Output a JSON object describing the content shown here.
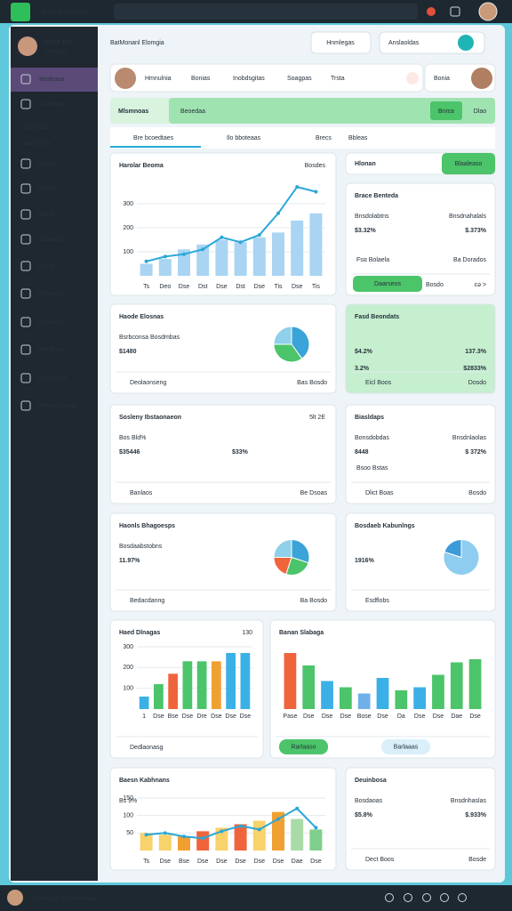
{
  "top_bar": {
    "app_name": "Sεnolab Bnsεmaι",
    "search": "Oεnsol"
  },
  "sidebar": {
    "user_name": "Sinda fno",
    "user_role": "Soteaos",
    "menu": [
      "Ifeoleaos",
      "Dnobrtaos",
      "Srae Btae",
      "Daa Elaπs",
      "Boxm",
      "Bolanl",
      "Bone",
      "Bolstaolo",
      "Bnsal",
      "Bolaopgs",
      "Bolalaen",
      "Bnrdlalas",
      "Boxprtiols",
      "Bonne Dlaola"
    ]
  },
  "header": {
    "title": "BatMonanl Elomgia",
    "buttons": [
      "Hnmlegas",
      "Anslaoldas"
    ]
  },
  "profile_bar": {
    "items": [
      "Hmnulnia",
      "Bonias",
      "Inobdsgitas",
      "Soagpas",
      "Trsta"
    ],
    "user": "Bonia"
  },
  "banner": {
    "title": "Mlsmnoas",
    "label": "Beoedaa",
    "buttons": [
      "Bnrεa",
      "Dlao"
    ]
  },
  "tabs": [
    "Bre bcoedtaes",
    "Ilo bboteaas",
    "Brecs",
    "Bbleas"
  ],
  "cards": [
    {
      "title": "Harolar Beoma",
      "tag": "Bosdes",
      "chart": {
        "type": "bar_line",
        "categories": [
          "Ts",
          "Deo",
          "Dse",
          "Dst",
          "Dse",
          "Dst",
          "Dse",
          "Tis",
          "Dse",
          "Tis"
        ],
        "bar_values": [
          50,
          70,
          110,
          130,
          150,
          140,
          160,
          180,
          230,
          260
        ],
        "line_values": [
          60,
          80,
          90,
          110,
          160,
          140,
          170,
          260,
          370,
          350
        ],
        "bar_color": "#a9d4f2",
        "line_color": "#2aa7d8",
        "ylim": [
          0,
          400
        ],
        "yticks": [
          100,
          200,
          300
        ]
      }
    },
    {
      "title": "Hlonan",
      "button": "Blaaleaso"
    },
    {
      "title": "Brace Benteda",
      "labels": [
        "Bnsdolabtns",
        "Bnsdnahalals"
      ],
      "stats": [
        "$3.32%",
        "$.373%"
      ],
      "labels2": [
        "Fsα Bolaela",
        "Ba Dorados"
      ],
      "button": "Daarseos",
      "footer": [
        "Bosdo",
        "cǝ >"
      ]
    },
    {
      "title": "Haode Elosnas",
      "labels": [
        "Bsrbconsa Bosdmbas"
      ],
      "stats": [
        "$1480"
      ],
      "footer": [
        "Deolaonseng",
        "Bas Bosdo"
      ],
      "chart": {
        "type": "pie",
        "values": [
          40,
          35,
          25
        ],
        "colors": [
          "#3aa3d8",
          "#4cc46a",
          "#8fd0ea"
        ]
      }
    },
    {
      "title": "Fasd Beondats",
      "stats": [
        "$4.2%",
        "137.3%"
      ],
      "stats2": [
        "3.2%",
        "$2833%"
      ],
      "footer": [
        "Eicl Boos",
        "Dosdo"
      ]
    },
    {
      "title": "Sosleny Ibstaonaeοn",
      "tag": "5lt 2E",
      "labels": [
        "Bos Bld%"
      ],
      "stats": [
        "$35446",
        "$33%"
      ],
      "footer": [
        "Banlaos",
        "Be Dsoas"
      ]
    },
    {
      "title": "Biasldaps",
      "labels": [
        "Bonsdobdas",
        "Bnsdnlaolas"
      ],
      "stats": [
        "8448",
        "$ 372%"
      ],
      "labels2": [
        "Bsoo Bstas"
      ],
      "footer": [
        "Dlict Boas",
        "Bosdo"
      ]
    },
    {
      "title": "Haonls Bhagoesps",
      "labels": [
        "Bosdaabstobns"
      ],
      "stats": [
        "11.97%"
      ],
      "footer": [
        "Bedacdanng",
        "Ba Bosdo"
      ],
      "chart": {
        "type": "pie",
        "values": [
          30,
          25,
          20,
          25
        ],
        "colors": [
          "#3aa3d8",
          "#4cc46a",
          "#f0643c",
          "#8fd0ea"
        ]
      }
    },
    {
      "title": "Bosdaeb Kabunlngs",
      "stats": [
        "1916%"
      ],
      "footer": [
        "Esdflobs"
      ],
      "chart": {
        "type": "pie",
        "values": [
          80,
          20
        ],
        "colors": [
          "#8fcdf0",
          "#3d9ad8"
        ]
      }
    },
    {
      "title": "Haed Dlnagas",
      "tag": "130",
      "footer": [
        "Dedlaonasg"
      ],
      "chart": {
        "type": "bar",
        "categories": [
          "1",
          "Dse",
          "Bse",
          "Dse",
          "Dre",
          "Dse",
          "Dse",
          "Dse"
        ],
        "values": [
          60,
          120,
          170,
          230,
          230,
          230,
          270,
          270
        ],
        "colors": [
          "#3ab0e6",
          "#4cc46a",
          "#f0643c",
          "#4cc46a",
          "#4cc46a",
          "#f0a030",
          "#3ab0e6",
          "#3ab0e6"
        ],
        "ylim": [
          0,
          300
        ],
        "yticks": [
          100,
          200,
          300
        ]
      }
    },
    {
      "title": "Banan Slabaga",
      "buttons": [
        "Rarlaaso",
        "Barlaaas"
      ],
      "chart": {
        "type": "bar",
        "categories": [
          "Pase",
          "Dse",
          "Dse",
          "Dse",
          "Bose",
          "Dse",
          "Da",
          "Dse",
          "Dse",
          "Dae",
          "Dse"
        ],
        "values": [
          90,
          70,
          45,
          35,
          25,
          50,
          30,
          35,
          55,
          75,
          80
        ],
        "colors": [
          "#f0643c",
          "#4cc46a",
          "#3ab0e6",
          "#4cc46a",
          "#6fb0ea",
          "#3ab0e6",
          "#4cc46a",
          "#3ab0e6",
          "#4cc46a",
          "#4cc46a",
          "#4cc46a"
        ],
        "ylim": [
          0,
          100
        ]
      }
    },
    {
      "title": "Baesn Kabhnans",
      "labels": [
        "Bs 9%"
      ],
      "chart": {
        "type": "bar_line",
        "categories": [
          "Ts",
          "Dse",
          "Bse",
          "Dse",
          "Dse",
          "Dse",
          "Dse",
          "Dse",
          "Dae",
          "Dse"
        ],
        "bar_values": [
          50,
          45,
          40,
          55,
          65,
          75,
          85,
          110,
          90,
          60
        ],
        "line_values": [
          45,
          50,
          40,
          35,
          55,
          70,
          60,
          90,
          120,
          65
        ],
        "colors": [
          "#f8d26a",
          "#f8d26a",
          "#f0a030",
          "#f0643c",
          "#f8d26a",
          "#f0643c",
          "#f8d26a",
          "#f0a030",
          "#a8dba8",
          "#7fcf8c"
        ],
        "line_color": "#2aa7d8",
        "ylim": [
          0,
          160
        ],
        "yticks": [
          50,
          100,
          150
        ]
      }
    },
    {
      "title": "Deuinbosa",
      "labels": [
        "Bosdaoas",
        "Bnsdnhaslas"
      ],
      "stats": [
        "$5.8%",
        "$.933%"
      ],
      "footer": [
        "Dect Boos",
        "Bosde"
      ]
    }
  ],
  "bottom_bar": {
    "text": "Ksεdsbys Bhsεnmaniεn"
  }
}
